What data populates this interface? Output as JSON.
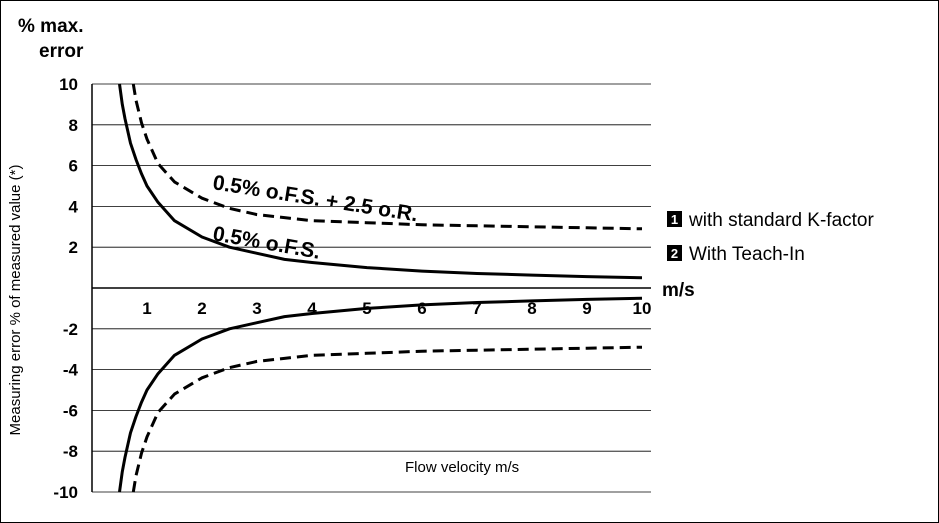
{
  "chart_data": {
    "type": "line",
    "yaxis_title": [
      "% max.",
      "error"
    ],
    "ylabel": "Measuring error % of measured value (*)",
    "xlabel": "Flow velocity m/s",
    "x_unit": "m/s",
    "xlim": [
      0,
      10
    ],
    "ylim": [
      -10,
      10
    ],
    "x_ticks": [
      1,
      2,
      3,
      4,
      5,
      6,
      7,
      8,
      9,
      10
    ],
    "x_tick_labels": [
      "1",
      "2",
      "3",
      "4",
      "5",
      "6",
      "7",
      "8",
      "9",
      "10"
    ],
    "y_ticks": [
      10,
      8,
      6,
      4,
      2,
      -2,
      -4,
      -6,
      -8,
      -10
    ],
    "y_tick_labels": [
      "10",
      "8",
      "6",
      "4",
      "2",
      "-2",
      "-4",
      "-6",
      "-8",
      "-10"
    ],
    "grid": "horizontal",
    "series": [
      {
        "name": "0.5% o.F.S.",
        "style": "solid",
        "color": "#000000",
        "x": [
          0.5,
          0.55,
          0.6,
          0.7,
          0.8,
          0.9,
          1.0,
          1.2,
          1.5,
          2.0,
          2.5,
          3.0,
          3.5,
          4.0,
          5.0,
          6.0,
          7.0,
          8.0,
          9.0,
          10.0
        ],
        "values": [
          10.0,
          9.0,
          8.3,
          7.1,
          6.3,
          5.6,
          5.0,
          4.2,
          3.3,
          2.5,
          2.0,
          1.7,
          1.4,
          1.25,
          1.0,
          0.83,
          0.71,
          0.63,
          0.56,
          0.5
        ]
      },
      {
        "name": "0.5% o.F.S. + 2.5 o.R.",
        "style": "dashed",
        "color": "#000000",
        "x": [
          0.75,
          0.8,
          0.9,
          1.0,
          1.2,
          1.5,
          2.0,
          2.5,
          3.0,
          3.5,
          4.0,
          5.0,
          6.0,
          7.0,
          8.0,
          9.0,
          10.0
        ],
        "values": [
          10.0,
          9.2,
          8.1,
          7.3,
          6.1,
          5.2,
          4.4,
          3.9,
          3.6,
          3.45,
          3.3,
          3.2,
          3.1,
          3.05,
          3.0,
          2.95,
          2.9
        ]
      }
    ],
    "mirror_negative": true,
    "annotations": [
      {
        "text": "0.5% o.F.S. + 2.5 o.R."
      },
      {
        "text": "0.5% o.F.S."
      }
    ],
    "legend": [
      {
        "marker": "1",
        "label": "with standard K-factor"
      },
      {
        "marker": "2",
        "label": "With Teach-In"
      }
    ]
  }
}
